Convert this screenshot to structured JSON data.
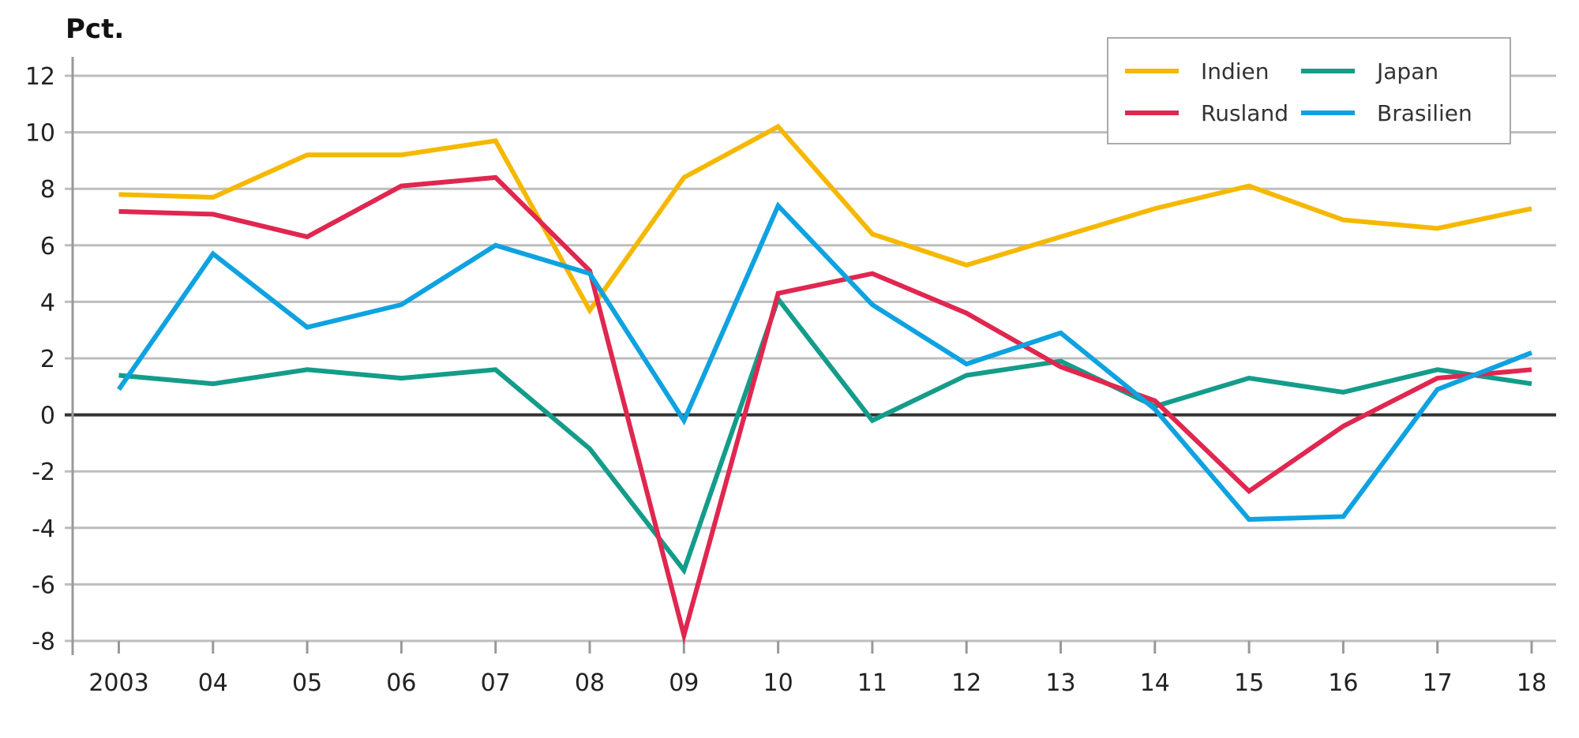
{
  "chart_data": {
    "type": "line",
    "unit_label": "Pct.",
    "xlabel": "",
    "ylabel": "",
    "categories": [
      "2003",
      "04",
      "05",
      "06",
      "07",
      "08",
      "09",
      "10",
      "11",
      "12",
      "13",
      "14",
      "15",
      "16",
      "17",
      "18"
    ],
    "ylim": [
      -8,
      12
    ],
    "yticks": [
      12,
      10,
      8,
      6,
      4,
      2,
      0,
      -2,
      -4,
      -6,
      -8
    ],
    "grid": true,
    "legend_position": "top-right",
    "series": [
      {
        "name": "Indien",
        "color": "#F5B800",
        "values": [
          7.8,
          7.7,
          9.2,
          9.2,
          9.7,
          3.7,
          8.4,
          10.2,
          6.4,
          5.3,
          6.3,
          7.3,
          8.1,
          6.9,
          6.6,
          7.3
        ]
      },
      {
        "name": "Japan",
        "color": "#149C8A",
        "values": [
          1.4,
          1.1,
          1.6,
          1.3,
          1.6,
          -1.2,
          -5.5,
          4.1,
          -0.2,
          1.4,
          1.9,
          0.3,
          1.3,
          0.8,
          1.6,
          1.1
        ]
      },
      {
        "name": "Rusland",
        "color": "#E0274F",
        "values": [
          7.2,
          7.1,
          6.3,
          8.1,
          8.4,
          5.1,
          -7.8,
          4.3,
          5.0,
          3.6,
          1.7,
          0.5,
          -2.7,
          -0.4,
          1.3,
          1.6
        ]
      },
      {
        "name": "Brasilien",
        "color": "#0EA2E0",
        "values": [
          0.9,
          5.7,
          3.1,
          3.9,
          6.0,
          5.0,
          -0.2,
          7.4,
          3.9,
          1.8,
          2.9,
          0.2,
          -3.7,
          -3.6,
          0.9,
          2.2
        ]
      }
    ]
  }
}
